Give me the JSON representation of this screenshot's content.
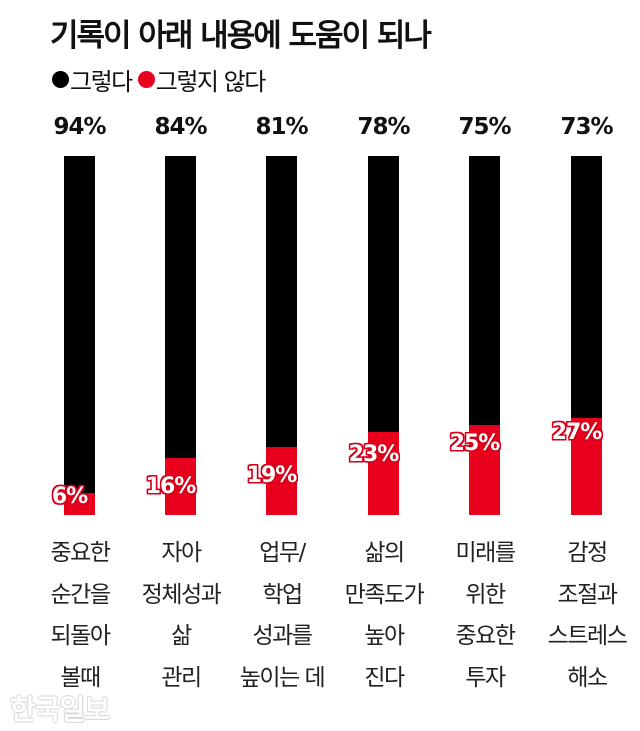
{
  "title": "기록이 아래 내용에 도움이 되나",
  "legend": [
    {
      "label": "그렇다",
      "color": "#000000"
    },
    {
      "label": "그렇지 않다",
      "color": "#e8001c"
    }
  ],
  "watermark": "한국일보",
  "chart_data": {
    "type": "bar",
    "stacked": true,
    "title": "기록이 아래 내용에 도움이 되나",
    "xlabel": "",
    "ylabel": "",
    "ylim": [
      0,
      100
    ],
    "grid": false,
    "legend_position": "top-left",
    "categories": [
      "중요한 순간을 되돌아 볼때",
      "자아 정체성과 삶 관리",
      "업무/학업 성과를 높이는 데",
      "삶의 만족도가 높아 진다",
      "미래를 위한 중요한 투자",
      "감정 조절과 스트레스 해소"
    ],
    "category_lines": [
      [
        "중요한",
        "순간을",
        "되돌아",
        "볼때"
      ],
      [
        "자아",
        "정체성과",
        "삶",
        "관리"
      ],
      [
        "업무/",
        "학업",
        "성과를",
        "높이는 데"
      ],
      [
        "삶의",
        "만족도가",
        "높아",
        "진다"
      ],
      [
        "미래를",
        "위한",
        "중요한",
        "투자"
      ],
      [
        "감정",
        "조절과",
        "스트레스",
        "해소"
      ]
    ],
    "series": [
      {
        "name": "그렇다",
        "color": "#000000",
        "values": [
          94,
          84,
          81,
          78,
          75,
          73
        ],
        "labels": [
          "94%",
          "84%",
          "81%",
          "78%",
          "75%",
          "73%"
        ]
      },
      {
        "name": "그렇지 않다",
        "color": "#e8001c",
        "values": [
          6,
          16,
          19,
          23,
          25,
          27
        ],
        "labels": [
          "6%",
          "16%",
          "19%",
          "23%",
          "25%",
          "27%"
        ]
      }
    ]
  }
}
